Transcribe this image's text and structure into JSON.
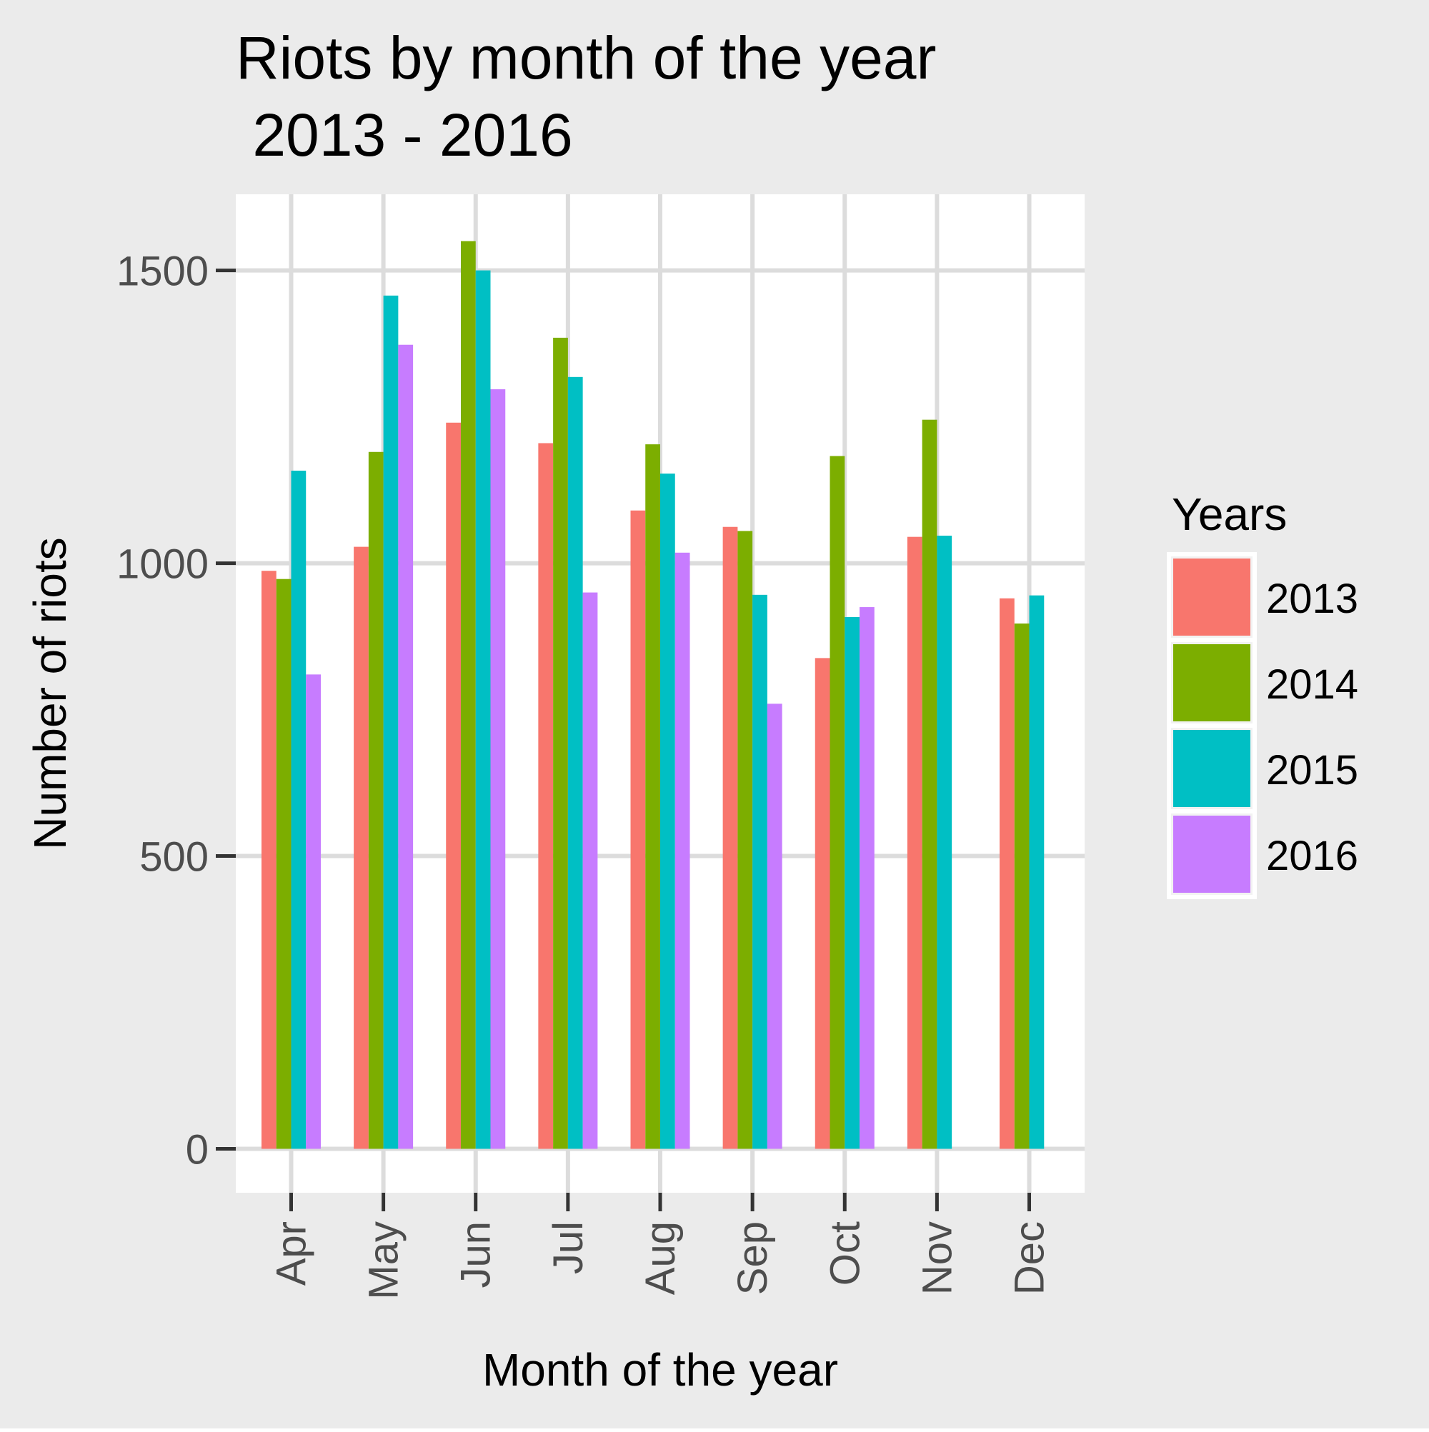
{
  "chart_data": {
    "type": "bar",
    "title": "Riots by month of the year\n 2013 - 2016",
    "title_lines": [
      "Riots by month of the year",
      " 2013 - 2016"
    ],
    "xlabel": "Month of the year",
    "ylabel": "Number of riots",
    "categories": [
      "Apr",
      "May",
      "Jun",
      "Jul",
      "Aug",
      "Sep",
      "Oct",
      "Nov",
      "Dec"
    ],
    "yticks": [
      0,
      500,
      1000,
      1500
    ],
    "ylim": [
      -75,
      1630
    ],
    "grid": true,
    "legend": {
      "title": "Years",
      "placement": "right"
    },
    "series": [
      {
        "name": "2013",
        "color": "#F8766D",
        "values": [
          987,
          1028,
          1240,
          1205,
          1090,
          1062,
          838,
          1045,
          940
        ]
      },
      {
        "name": "2014",
        "color": "#7CAE00",
        "values": [
          973,
          1190,
          1550,
          1385,
          1203,
          1055,
          1183,
          1245,
          897
        ]
      },
      {
        "name": "2015",
        "color": "#00BFC4",
        "values": [
          1158,
          1457,
          1500,
          1318,
          1153,
          946,
          908,
          1047,
          945
        ]
      },
      {
        "name": "2016",
        "color": "#C77CFF",
        "values": [
          810,
          1373,
          1297,
          950,
          1018,
          760,
          925,
          null,
          null
        ]
      }
    ]
  }
}
